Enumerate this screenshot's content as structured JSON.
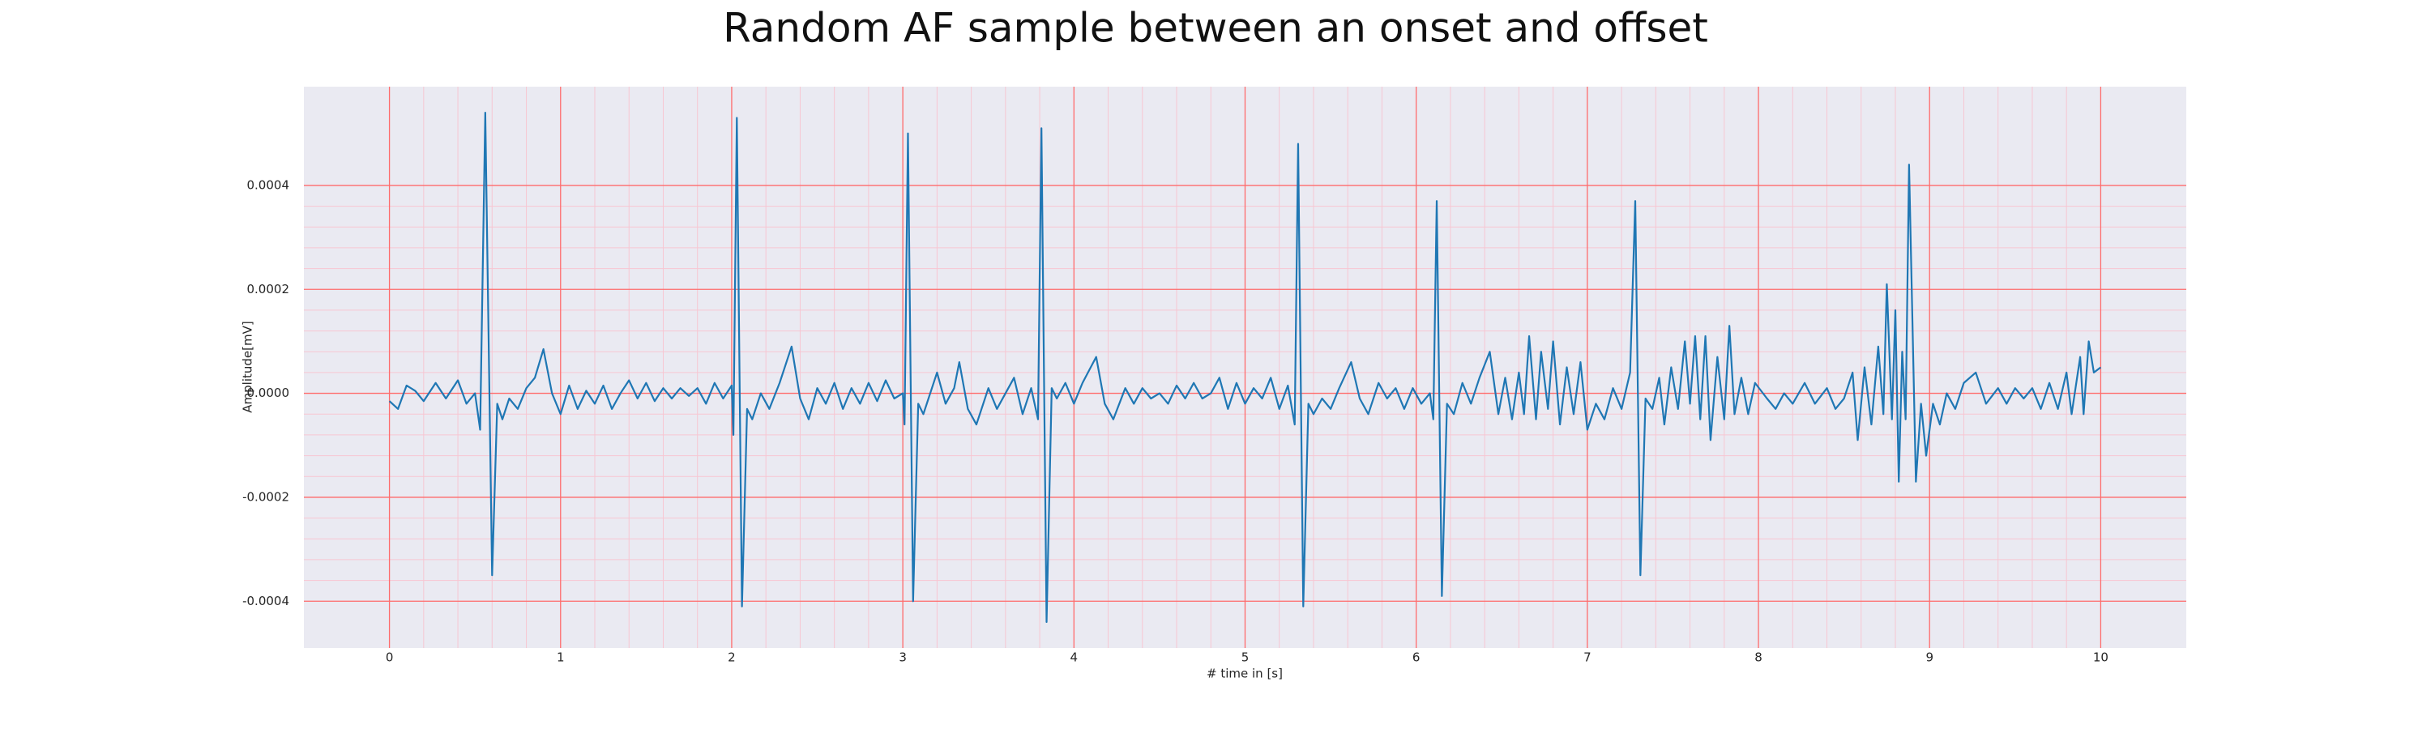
{
  "chart_data": {
    "type": "line",
    "title": "Random AF sample between an onset and offset",
    "xlabel": "# time in [s]",
    "ylabel": "Amplitude[mV]",
    "xlim": [
      -0.5,
      10.5
    ],
    "ylim": [
      -0.00049,
      0.00059
    ],
    "xticks": [
      0,
      1,
      2,
      3,
      4,
      5,
      6,
      7,
      8,
      9,
      10
    ],
    "yticks": [
      {
        "value": -0.0004,
        "label": "-0.0004"
      },
      {
        "value": -0.0002,
        "label": "-0.0002"
      },
      {
        "value": 0,
        "label": "0.0000"
      },
      {
        "value": 0.0002,
        "label": "0.0002"
      },
      {
        "value": 0.0004,
        "label": "0.0004"
      }
    ],
    "grid": true,
    "grid_color": "#ff6b6b",
    "minor_grid": true,
    "minor_grid_color": "#f7c6d2",
    "background": "#eaeaf2",
    "x": [
      0,
      0.05,
      0.1,
      0.15,
      0.2,
      0.27,
      0.33,
      0.4,
      0.45,
      0.5,
      0.53,
      0.56,
      0.6,
      0.63,
      0.66,
      0.7,
      0.75,
      0.8,
      0.85,
      0.9,
      0.95,
      1.0,
      1.05,
      1.1,
      1.15,
      1.2,
      1.25,
      1.3,
      1.35,
      1.4,
      1.45,
      1.5,
      1.55,
      1.6,
      1.65,
      1.7,
      1.75,
      1.8,
      1.85,
      1.9,
      1.95,
      2.0,
      2.01,
      2.03,
      2.06,
      2.09,
      2.12,
      2.17,
      2.22,
      2.28,
      2.35,
      2.4,
      2.45,
      2.5,
      2.55,
      2.6,
      2.65,
      2.7,
      2.75,
      2.8,
      2.85,
      2.9,
      2.95,
      3.0,
      3.01,
      3.03,
      3.06,
      3.09,
      3.12,
      3.17,
      3.2,
      3.25,
      3.3,
      3.33,
      3.38,
      3.43,
      3.5,
      3.55,
      3.6,
      3.65,
      3.7,
      3.75,
      3.79,
      3.81,
      3.84,
      3.87,
      3.9,
      3.95,
      4.0,
      4.05,
      4.13,
      4.18,
      4.23,
      4.3,
      4.35,
      4.4,
      4.45,
      4.5,
      4.55,
      4.6,
      4.65,
      4.7,
      4.75,
      4.8,
      4.85,
      4.9,
      4.95,
      5.0,
      5.05,
      5.1,
      5.15,
      5.2,
      5.25,
      5.29,
      5.31,
      5.34,
      5.37,
      5.4,
      5.45,
      5.5,
      5.55,
      5.62,
      5.67,
      5.72,
      5.78,
      5.83,
      5.88,
      5.93,
      5.98,
      6.03,
      6.08,
      6.1,
      6.12,
      6.15,
      6.18,
      6.22,
      6.27,
      6.32,
      6.37,
      6.43,
      6.48,
      6.52,
      6.56,
      6.6,
      6.63,
      6.66,
      6.7,
      6.73,
      6.77,
      6.8,
      6.84,
      6.88,
      6.92,
      6.96,
      7.0,
      7.05,
      7.1,
      7.15,
      7.2,
      7.25,
      7.28,
      7.31,
      7.34,
      7.38,
      7.42,
      7.45,
      7.49,
      7.53,
      7.57,
      7.6,
      7.63,
      7.66,
      7.69,
      7.72,
      7.76,
      7.8,
      7.83,
      7.86,
      7.9,
      7.94,
      7.98,
      8.05,
      8.1,
      8.15,
      8.2,
      8.27,
      8.33,
      8.4,
      8.45,
      8.5,
      8.55,
      8.58,
      8.62,
      8.66,
      8.7,
      8.73,
      8.75,
      8.78,
      8.8,
      8.82,
      8.84,
      8.86,
      8.88,
      8.92,
      8.95,
      8.98,
      9.02,
      9.06,
      9.1,
      9.15,
      9.2,
      9.27,
      9.33,
      9.4,
      9.45,
      9.5,
      9.55,
      9.6,
      9.65,
      9.7,
      9.75,
      9.8,
      9.83,
      9.88,
      9.9,
      9.93,
      9.96,
      10.0
    ],
    "series": [
      {
        "color": "#1f77b4",
        "values": [
          -1.5e-05,
          -3e-05,
          1.5e-05,
          5e-06,
          -1.5e-05,
          2e-05,
          -1e-05,
          2.5e-05,
          -2e-05,
          0,
          -7e-05,
          0.00054,
          -0.00035,
          -2e-05,
          -5e-05,
          -1e-05,
          -3e-05,
          1e-05,
          3e-05,
          8.5e-05,
          0,
          -4e-05,
          1.5e-05,
          -3e-05,
          5e-06,
          -2e-05,
          1.5e-05,
          -3e-05,
          0,
          2.5e-05,
          -1e-05,
          2e-05,
          -1.5e-05,
          1e-05,
          -1e-05,
          1e-05,
          -5e-06,
          1e-05,
          -2e-05,
          2e-05,
          -1e-05,
          1.5e-05,
          -8e-05,
          0.00053,
          -0.00041,
          -3e-05,
          -5e-05,
          0,
          -3e-05,
          2e-05,
          9e-05,
          -1e-05,
          -5e-05,
          1e-05,
          -2e-05,
          2e-05,
          -3e-05,
          1e-05,
          -2e-05,
          2e-05,
          -1.5e-05,
          2.5e-05,
          -1e-05,
          0,
          -6e-05,
          0.0005,
          -0.0004,
          -2e-05,
          -4e-05,
          1e-05,
          4e-05,
          -2e-05,
          1e-05,
          6e-05,
          -3e-05,
          -6e-05,
          1e-05,
          -3e-05,
          0,
          3e-05,
          -4e-05,
          1e-05,
          -5e-05,
          0.00051,
          -0.00044,
          1e-05,
          -1e-05,
          2e-05,
          -2e-05,
          2e-05,
          7e-05,
          -2e-05,
          -5e-05,
          1e-05,
          -2e-05,
          1e-05,
          -1e-05,
          0,
          -2e-05,
          1.5e-05,
          -1e-05,
          2e-05,
          -1e-05,
          0,
          3e-05,
          -3e-05,
          2e-05,
          -2e-05,
          1e-05,
          -1e-05,
          3e-05,
          -3e-05,
          1.5e-05,
          -6e-05,
          0.00048,
          -0.00041,
          -2e-05,
          -4e-05,
          -1e-05,
          -3e-05,
          1e-05,
          6e-05,
          -1e-05,
          -4e-05,
          2e-05,
          -1e-05,
          1e-05,
          -3e-05,
          1e-05,
          -2e-05,
          0,
          -5e-05,
          0.00037,
          -0.00039,
          -2e-05,
          -4e-05,
          2e-05,
          -2e-05,
          3e-05,
          8e-05,
          -4e-05,
          3e-05,
          -5e-05,
          4e-05,
          -4e-05,
          0.00011,
          -5e-05,
          8e-05,
          -3e-05,
          0.0001,
          -6e-05,
          5e-05,
          -4e-05,
          6e-05,
          -7e-05,
          -2e-05,
          -5e-05,
          1e-05,
          -3e-05,
          4e-05,
          0.00037,
          -0.00035,
          -1e-05,
          -3e-05,
          3e-05,
          -6e-05,
          5e-05,
          -3e-05,
          0.0001,
          -2e-05,
          0.00011,
          -5e-05,
          0.00011,
          -9e-05,
          7e-05,
          -5e-05,
          0.00013,
          -4e-05,
          3e-05,
          -4e-05,
          2e-05,
          -1e-05,
          -3e-05,
          0,
          -2e-05,
          2e-05,
          -2e-05,
          1e-05,
          -3e-05,
          -1e-05,
          4e-05,
          -9e-05,
          5e-05,
          -6e-05,
          9e-05,
          -4e-05,
          0.00021,
          -5e-05,
          0.00016,
          -0.00017,
          8e-05,
          -5e-05,
          0.00044,
          -0.00017,
          -2e-05,
          -0.00012,
          -2e-05,
          -6e-05,
          0,
          -3e-05,
          2e-05,
          4e-05,
          -2e-05,
          1e-05,
          -2e-05,
          1e-05,
          -1e-05,
          1e-05,
          -3e-05,
          2e-05,
          -3e-05,
          4e-05,
          -4e-05,
          7e-05,
          -4e-05,
          0.0001,
          4e-05,
          5e-05
        ]
      }
    ]
  }
}
